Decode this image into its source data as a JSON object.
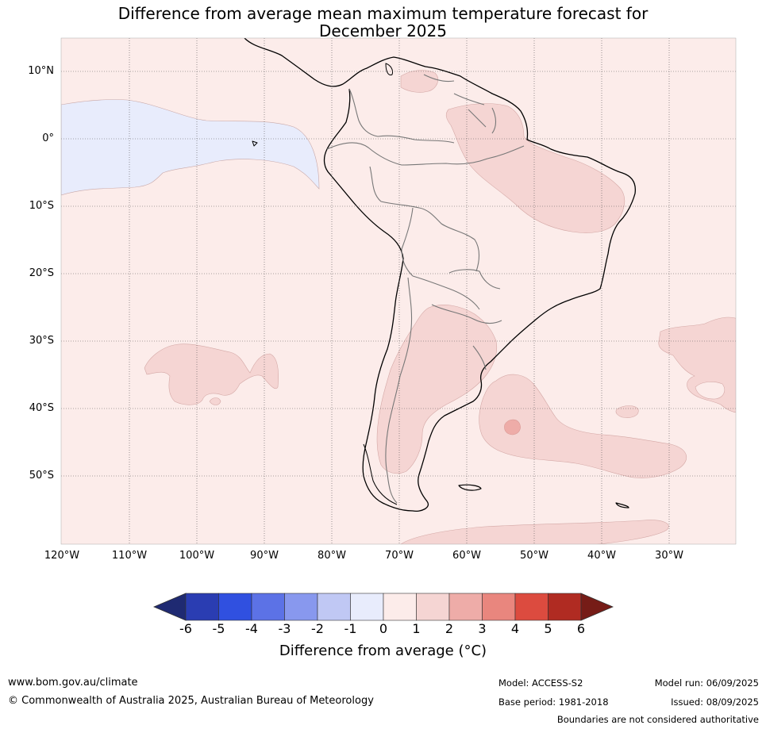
{
  "title": {
    "line1": "Difference from average mean maximum temperature forecast for",
    "line2": "December 2025"
  },
  "map": {
    "lat_labels": [
      "10°N",
      "0°",
      "10°S",
      "20°S",
      "30°S",
      "40°S",
      "50°S"
    ],
    "lon_labels": [
      "120°W",
      "110°W",
      "100°W",
      "90°W",
      "80°W",
      "70°W",
      "60°W",
      "50°W",
      "40°W",
      "30°W"
    ],
    "background_class": "0 to 1",
    "regions": [
      {
        "name": "eastern-pacific-cool-tongue",
        "class": "-1 to 0"
      },
      {
        "name": "northern-south-america-warm",
        "class": "1 to 2"
      },
      {
        "name": "northeast-brazil-warm",
        "class": "1 to 2"
      },
      {
        "name": "southern-south-america-warm",
        "class": "1 to 2"
      },
      {
        "name": "south-atlantic-warm",
        "class": "1 to 2"
      },
      {
        "name": "south-atlantic-warmer-spot",
        "class": "2 to 3"
      },
      {
        "name": "southeast-pacific-warm",
        "class": "1 to 2"
      },
      {
        "name": "far-south-atlantic-warm",
        "class": "1 to 2"
      },
      {
        "name": "southern-ocean-warm",
        "class": "1 to 2"
      }
    ]
  },
  "colorbar": {
    "ticks": [
      "-6",
      "-5",
      "-4",
      "-3",
      "-2",
      "-1",
      "0",
      "1",
      "2",
      "3",
      "4",
      "5",
      "6"
    ],
    "colors": {
      "below_min": "#1f2a72",
      "bins": [
        "#2a3db2",
        "#3050e0",
        "#5c72e6",
        "#8898ee",
        "#c0c8f4",
        "#e8ecfc",
        "#fcecea",
        "#f5d5d3",
        "#eeaca8",
        "#e9867e",
        "#dc4b3f",
        "#b02b22"
      ],
      "above_max": "#761c17"
    },
    "label": "Difference from average (°C)"
  },
  "footer": {
    "website": "www.bom.gov.au/climate",
    "copyright": "© Commonwealth of Australia 2025, Australian Bureau of Meteorology",
    "model": "Model: ACCESS-S2",
    "base_period": "Base period: 1981-2018",
    "model_run": "Model run: 06/09/2025",
    "issued": "Issued: 08/09/2025",
    "disclaimer": "Boundaries are not considered authoritative"
  }
}
